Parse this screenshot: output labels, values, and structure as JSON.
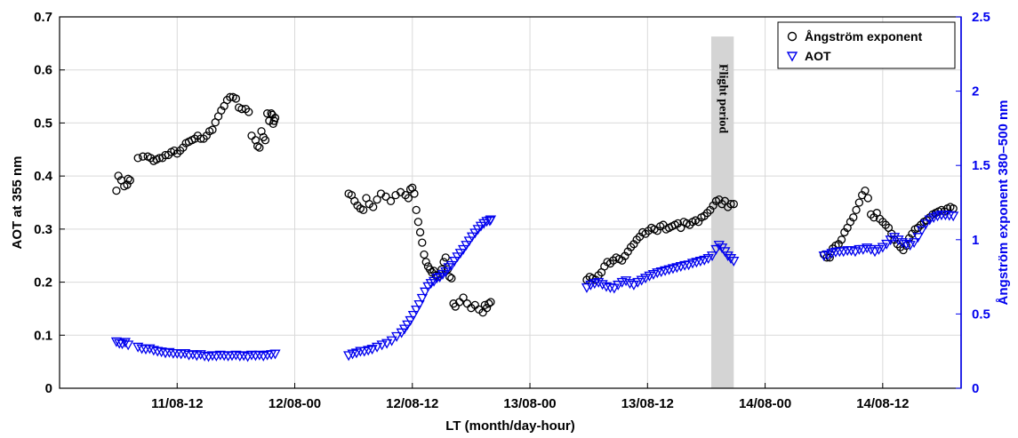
{
  "chart_data": {
    "type": "scatter",
    "xlabel": "LT (month/day-hour)",
    "ylabel": "AOT at 355 nm",
    "y2label": "Ångström exponent 380–500 nm",
    "xlim": [
      0,
      92
    ],
    "ylim": [
      0,
      0.7
    ],
    "y2lim": [
      0,
      2.5
    ],
    "x_ticks": [
      {
        "x": 12,
        "label": "11/08-12"
      },
      {
        "x": 24,
        "label": "12/08-00"
      },
      {
        "x": 36,
        "label": "12/08-12"
      },
      {
        "x": 48,
        "label": "13/08-00"
      },
      {
        "x": 60,
        "label": "13/08-12"
      },
      {
        "x": 72,
        "label": "14/08-00"
      },
      {
        "x": 84,
        "label": "14/08-12"
      }
    ],
    "y_ticks": [
      "0",
      "0.1",
      "0.2",
      "0.3",
      "0.4",
      "0.5",
      "0.6",
      "0.7"
    ],
    "y2_ticks": [
      "0",
      "0.5",
      "1",
      "1.5",
      "2",
      "2.5"
    ],
    "grid": true,
    "legend_position": "top-right",
    "shaded_region": {
      "x_start": 66.5,
      "x_end": 68.8,
      "y_top": 0.663,
      "label": "Flight period",
      "color": "#d4d4d4"
    },
    "colors": {
      "angstrom": "#000000",
      "aot": "#0000ee",
      "right_axis": "#0000ee"
    },
    "series": [
      {
        "name": "Ångström exponent",
        "marker": "circle",
        "axis": "right",
        "x": [
          5.8,
          6.0,
          6.3,
          6.6,
          6.9,
          7.0,
          7.2,
          8.0,
          8.5,
          9.0,
          9.3,
          9.6,
          9.9,
          10.2,
          10.5,
          10.8,
          11.1,
          11.4,
          11.7,
          12.0,
          12.3,
          12.6,
          12.9,
          13.2,
          13.5,
          13.8,
          14.1,
          14.4,
          14.7,
          15.0,
          15.3,
          15.6,
          15.9,
          16.2,
          16.5,
          16.8,
          17.1,
          17.4,
          17.7,
          18.0,
          18.3,
          18.6,
          19.0,
          19.3,
          19.6,
          20.0,
          20.2,
          20.4,
          20.6,
          20.8,
          21.0,
          21.2,
          21.4,
          21.6,
          21.7,
          21.8,
          21.9,
          22.0,
          29.5,
          29.8,
          30.1,
          30.4,
          30.7,
          31.0,
          31.3,
          31.6,
          32.0,
          32.4,
          32.8,
          33.3,
          33.8,
          34.3,
          34.8,
          35.3,
          35.6,
          35.8,
          36.0,
          36.2,
          36.4,
          36.6,
          36.8,
          37.0,
          37.2,
          37.4,
          37.6,
          37.8,
          38.0,
          38.2,
          38.4,
          38.6,
          38.8,
          39.0,
          39.2,
          39.4,
          39.6,
          39.8,
          40.0,
          40.2,
          40.4,
          40.8,
          41.2,
          41.6,
          42.0,
          42.4,
          42.8,
          43.2,
          43.4,
          43.6,
          43.8,
          44.0,
          53.8,
          54.1,
          54.4,
          54.7,
          55.0,
          55.3,
          55.6,
          55.9,
          56.2,
          56.5,
          56.8,
          57.1,
          57.4,
          57.7,
          58.0,
          58.3,
          58.6,
          58.9,
          59.2,
          59.5,
          59.8,
          60.1,
          60.4,
          60.7,
          61.0,
          61.3,
          61.6,
          61.9,
          62.2,
          62.5,
          62.8,
          63.1,
          63.4,
          63.7,
          64.0,
          64.3,
          64.6,
          64.9,
          65.2,
          65.5,
          65.8,
          66.1,
          66.4,
          66.7,
          67.0,
          67.3,
          67.6,
          67.9,
          68.2,
          68.5,
          68.8,
          78.0,
          78.3,
          78.6,
          78.9,
          79.2,
          79.5,
          79.8,
          80.1,
          80.4,
          80.7,
          81.0,
          81.3,
          81.6,
          81.9,
          82.2,
          82.5,
          82.8,
          83.1,
          83.4,
          83.7,
          84.0,
          84.3,
          84.6,
          84.9,
          85.2,
          85.5,
          85.8,
          86.1,
          86.4,
          86.7,
          87.0,
          87.3,
          87.6,
          87.9,
          88.2,
          88.5,
          88.8,
          89.1,
          89.4,
          89.7,
          90.0,
          90.3,
          90.6,
          90.9,
          91.2
        ],
        "y": [
          1.33,
          1.43,
          1.4,
          1.36,
          1.37,
          1.41,
          1.4,
          1.55,
          1.56,
          1.56,
          1.55,
          1.53,
          1.54,
          1.55,
          1.55,
          1.57,
          1.57,
          1.59,
          1.6,
          1.58,
          1.6,
          1.62,
          1.65,
          1.66,
          1.67,
          1.68,
          1.7,
          1.68,
          1.68,
          1.7,
          1.73,
          1.74,
          1.79,
          1.83,
          1.87,
          1.9,
          1.94,
          1.96,
          1.96,
          1.95,
          1.89,
          1.88,
          1.88,
          1.86,
          1.7,
          1.67,
          1.63,
          1.62,
          1.73,
          1.69,
          1.67,
          1.85,
          1.8,
          1.85,
          1.84,
          1.78,
          1.8,
          1.82,
          1.31,
          1.3,
          1.26,
          1.23,
          1.21,
          1.2,
          1.28,
          1.24,
          1.22,
          1.27,
          1.31,
          1.29,
          1.26,
          1.3,
          1.32,
          1.3,
          1.28,
          1.34,
          1.35,
          1.31,
          1.2,
          1.12,
          1.05,
          0.98,
          0.9,
          0.85,
          0.82,
          0.8,
          0.78,
          0.79,
          0.76,
          0.75,
          0.77,
          0.8,
          0.85,
          0.88,
          0.8,
          0.75,
          0.74,
          0.57,
          0.55,
          0.58,
          0.61,
          0.57,
          0.54,
          0.56,
          0.53,
          0.51,
          0.56,
          0.54,
          0.57,
          0.58,
          0.73,
          0.75,
          0.74,
          0.73,
          0.76,
          0.78,
          0.82,
          0.85,
          0.84,
          0.86,
          0.88,
          0.87,
          0.86,
          0.89,
          0.92,
          0.95,
          0.97,
          1.0,
          1.02,
          1.05,
          1.04,
          1.06,
          1.08,
          1.07,
          1.06,
          1.09,
          1.1,
          1.07,
          1.08,
          1.09,
          1.1,
          1.11,
          1.08,
          1.12,
          1.11,
          1.1,
          1.12,
          1.13,
          1.12,
          1.15,
          1.16,
          1.18,
          1.2,
          1.23,
          1.26,
          1.27,
          1.24,
          1.26,
          1.22,
          1.24,
          1.24,
          0.9,
          0.88,
          0.88,
          0.94,
          0.96,
          0.97,
          1.0,
          1.05,
          1.08,
          1.12,
          1.15,
          1.2,
          1.25,
          1.3,
          1.33,
          1.28,
          1.17,
          1.15,
          1.18,
          1.14,
          1.12,
          1.1,
          1.08,
          1.04,
          1.0,
          0.97,
          0.95,
          0.93,
          0.96,
          1.01,
          1.04,
          1.07,
          1.08,
          1.1,
          1.12,
          1.13,
          1.15,
          1.17,
          1.18,
          1.19,
          1.2,
          1.19,
          1.21,
          1.22,
          1.21
        ]
      },
      {
        "name": "AOT",
        "marker": "triangle-down",
        "axis": "left",
        "x": [
          5.8,
          6.1,
          6.4,
          6.7,
          7.0,
          8.0,
          8.4,
          8.8,
          9.2,
          9.6,
          10.0,
          10.4,
          10.8,
          11.2,
          11.6,
          12.0,
          12.4,
          12.8,
          13.2,
          13.6,
          14.0,
          14.4,
          14.8,
          15.2,
          15.6,
          16.0,
          16.4,
          16.8,
          17.2,
          17.6,
          18.0,
          18.4,
          18.8,
          19.2,
          19.6,
          20.0,
          20.4,
          20.8,
          21.2,
          21.6,
          22.0,
          29.5,
          29.9,
          30.3,
          30.7,
          31.1,
          31.5,
          31.9,
          32.4,
          32.9,
          33.4,
          33.9,
          34.4,
          34.9,
          35.2,
          35.5,
          35.8,
          36.1,
          36.4,
          36.7,
          37.0,
          37.3,
          37.6,
          37.9,
          38.2,
          38.5,
          38.8,
          39.1,
          39.4,
          39.7,
          40.0,
          40.3,
          40.6,
          40.9,
          41.2,
          41.5,
          41.8,
          42.1,
          42.4,
          42.7,
          43.0,
          43.3,
          43.6,
          43.9,
          44.0,
          53.8,
          54.2,
          54.6,
          55.0,
          55.4,
          55.8,
          56.2,
          56.6,
          57.0,
          57.4,
          57.8,
          58.2,
          58.6,
          59.0,
          59.4,
          59.8,
          60.2,
          60.6,
          61.0,
          61.4,
          61.8,
          62.2,
          62.6,
          63.0,
          63.4,
          63.8,
          64.2,
          64.6,
          65.0,
          65.4,
          65.8,
          66.2,
          66.6,
          67.0,
          67.3,
          67.6,
          67.9,
          68.2,
          68.5,
          68.8,
          78.0,
          78.4,
          78.8,
          79.2,
          79.6,
          80.0,
          80.4,
          80.8,
          81.2,
          81.6,
          82.0,
          82.4,
          82.8,
          83.2,
          83.6,
          84.0,
          84.4,
          84.8,
          85.2,
          85.6,
          86.0,
          86.4,
          86.8,
          87.2,
          87.6,
          88.0,
          88.4,
          88.8,
          89.2,
          89.6,
          90.0,
          90.4,
          90.8,
          91.2
        ],
        "y": [
          0.088,
          0.085,
          0.084,
          0.087,
          0.082,
          0.078,
          0.075,
          0.074,
          0.075,
          0.072,
          0.07,
          0.069,
          0.067,
          0.068,
          0.066,
          0.066,
          0.065,
          0.066,
          0.063,
          0.064,
          0.062,
          0.064,
          0.061,
          0.06,
          0.062,
          0.061,
          0.063,
          0.062,
          0.061,
          0.062,
          0.063,
          0.061,
          0.062,
          0.06,
          0.063,
          0.062,
          0.063,
          0.061,
          0.063,
          0.064,
          0.065,
          0.062,
          0.065,
          0.067,
          0.07,
          0.07,
          0.072,
          0.074,
          0.078,
          0.082,
          0.085,
          0.09,
          0.098,
          0.105,
          0.112,
          0.12,
          0.128,
          0.138,
          0.148,
          0.158,
          0.17,
          0.182,
          0.192,
          0.198,
          0.202,
          0.208,
          0.21,
          0.215,
          0.22,
          0.228,
          0.232,
          0.24,
          0.248,
          0.255,
          0.262,
          0.27,
          0.278,
          0.286,
          0.293,
          0.3,
          0.306,
          0.311,
          0.315,
          0.316,
          0.318,
          0.19,
          0.195,
          0.198,
          0.2,
          0.196,
          0.192,
          0.19,
          0.189,
          0.195,
          0.2,
          0.203,
          0.198,
          0.195,
          0.2,
          0.204,
          0.208,
          0.212,
          0.215,
          0.218,
          0.22,
          0.222,
          0.224,
          0.226,
          0.228,
          0.23,
          0.232,
          0.233,
          0.236,
          0.238,
          0.24,
          0.242,
          0.245,
          0.25,
          0.262,
          0.27,
          0.265,
          0.258,
          0.25,
          0.245,
          0.24,
          0.25,
          0.252,
          0.255,
          0.257,
          0.258,
          0.258,
          0.26,
          0.26,
          0.258,
          0.262,
          0.262,
          0.265,
          0.262,
          0.258,
          0.262,
          0.266,
          0.272,
          0.28,
          0.285,
          0.28,
          0.275,
          0.272,
          0.27,
          0.275,
          0.285,
          0.298,
          0.31,
          0.318,
          0.322,
          0.325,
          0.327,
          0.327,
          0.326,
          0.325
        ]
      }
    ],
    "legend": [
      "Ångström exponent",
      "AOT"
    ]
  }
}
